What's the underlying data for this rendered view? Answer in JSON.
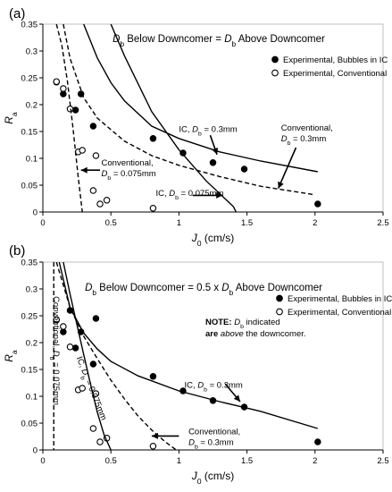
{
  "chart_data": [
    {
      "panel_label": "(a)",
      "type": "scatter",
      "title_parts": [
        "D",
        "b",
        " Below Downcomer = ",
        "D",
        "b",
        " Above Downcomer"
      ],
      "xlabel_parts": [
        "J",
        "0",
        " (cm/s)"
      ],
      "ylabel_parts": [
        "R",
        "a"
      ],
      "xlim": [
        0,
        2.5
      ],
      "ylim": [
        0,
        0.35
      ],
      "xticks": [
        0,
        0.5,
        1,
        1.5,
        2,
        2.5
      ],
      "xtick_labels": [
        "0",
        "0.5",
        "1",
        "1.5",
        "2",
        "2.5"
      ],
      "yticks": [
        0,
        0.05,
        0.1,
        0.15,
        0.2,
        0.25,
        0.3,
        0.35
      ],
      "ytick_labels": [
        "0",
        "0.05",
        "0.1",
        "0.15",
        "0.2",
        "0.25",
        "0.3",
        "0.35"
      ],
      "grid": false,
      "legend_position": "top-right",
      "legend": [
        {
          "marker": "filled",
          "label": "Experimental, Bubbles in IC"
        },
        {
          "marker": "open",
          "label": "Experimental, Conventional"
        }
      ],
      "series": [
        {
          "name": "Experimental, Bubbles in IC",
          "marker": "filled",
          "x": [
            0.1,
            0.15,
            0.24,
            0.28,
            0.37,
            0.81,
            1.03,
            1.25,
            1.48,
            2.02
          ],
          "y": [
            0.242,
            0.22,
            0.19,
            0.22,
            0.16,
            0.137,
            0.11,
            0.092,
            0.08,
            0.015
          ]
        },
        {
          "name": "Experimental, Conventional",
          "marker": "open",
          "x": [
            0.1,
            0.15,
            0.2,
            0.26,
            0.29,
            0.37,
            0.39,
            0.42,
            0.47,
            0.81
          ],
          "y": [
            0.243,
            0.23,
            0.192,
            0.112,
            0.115,
            0.04,
            0.105,
            0.015,
            0.022,
            0.007
          ]
        },
        {
          "name": "IC, Db = 0.3mm",
          "style": "solid",
          "x": [
            0.3,
            0.4,
            0.5,
            0.6,
            0.8,
            1.0,
            1.3,
            1.6,
            2.02
          ],
          "y": [
            0.35,
            0.287,
            0.241,
            0.207,
            0.16,
            0.137,
            0.112,
            0.095,
            0.075
          ]
        },
        {
          "name": "IC, Db = 0.075mm",
          "style": "solid",
          "x": [
            0.5,
            0.6,
            0.8,
            1.0,
            1.2,
            1.4,
            1.42
          ],
          "y": [
            0.35,
            0.291,
            0.187,
            0.116,
            0.058,
            0.01,
            0
          ]
        },
        {
          "name": "Conventional, Db = 0.3mm",
          "style": "dashed",
          "x": [
            0.15,
            0.2,
            0.3,
            0.4,
            0.6,
            0.8,
            1.0,
            1.3,
            1.6,
            2.0
          ],
          "y": [
            0.35,
            0.286,
            0.213,
            0.175,
            0.132,
            0.105,
            0.087,
            0.066,
            0.048,
            0.032
          ]
        },
        {
          "name": "Conventional, Db = 0.075mm",
          "style": "dashed",
          "x": [
            0.1,
            0.14,
            0.18,
            0.22,
            0.26,
            0.29
          ],
          "y": [
            0.35,
            0.31,
            0.245,
            0.16,
            0.065,
            0
          ]
        }
      ],
      "annotations": [
        {
          "lines": [
            [
              "IC, ",
              "D",
              "b",
              " = 0.3mm"
            ]
          ],
          "x": 1.0,
          "y": 0.149,
          "arrow_from": [
            1.23,
            0.143
          ],
          "arrow_to": [
            1.28,
            0.107
          ]
        },
        {
          "lines": [
            [
              "Conventional,"
            ],
            [
              "D",
              "b",
              " = 0.3mm"
            ]
          ],
          "x": 1.75,
          "y": 0.152,
          "arrow_from": [
            1.86,
            0.12
          ],
          "arrow_to": [
            1.73,
            0.044
          ]
        },
        {
          "lines": [
            [
              "Conventional,"
            ],
            [
              "D",
              "b",
              " = 0.075mm"
            ]
          ],
          "x": 0.43,
          "y": 0.087,
          "arrow_from": [
            0.42,
            0.078
          ],
          "arrow_to": [
            0.28,
            0.078
          ]
        },
        {
          "lines": [
            [
              "IC, ",
              "D",
              "b",
              " = 0.075mm"
            ]
          ],
          "x": 0.83,
          "y": 0.03,
          "arrow_from": [
            1.1,
            0.031
          ],
          "arrow_to": [
            1.32,
            0.031
          ]
        }
      ]
    },
    {
      "panel_label": "(b)",
      "type": "scatter",
      "title_parts": [
        "D",
        "b",
        " Below Downcomer = 0.5 x ",
        "D",
        "b",
        " Above Downcomer"
      ],
      "xlabel_parts": [
        "J",
        "0",
        " (cm/s)"
      ],
      "ylabel_parts": [
        "R",
        "a"
      ],
      "xlim": [
        0,
        2.5
      ],
      "ylim": [
        0,
        0.35
      ],
      "xticks": [
        0,
        0.5,
        1,
        1.5,
        2,
        2.5
      ],
      "xtick_labels": [
        "0",
        "0.5",
        "1",
        "1.5",
        "2",
        "2.5"
      ],
      "yticks": [
        0,
        0.05,
        0.1,
        0.15,
        0.2,
        0.25,
        0.3,
        0.35
      ],
      "ytick_labels": [
        "0",
        "0.05",
        "0.1",
        "0.15",
        "0.2",
        "0.25",
        "0.3",
        "0.35"
      ],
      "grid": false,
      "legend_position": "top-right",
      "legend": [
        {
          "marker": "filled",
          "label": "Experimental, Bubbles in IC"
        },
        {
          "marker": "open",
          "label": "Experimental, Conventional"
        }
      ],
      "note_parts": [
        [
          "NOTE: ",
          "D",
          "b",
          " indicated"
        ],
        [
          "are ",
          "above",
          " the downcomer."
        ]
      ],
      "series": [
        {
          "name": "Experimental, Bubbles in IC",
          "marker": "filled",
          "x": [
            0.1,
            0.15,
            0.2,
            0.24,
            0.28,
            0.37,
            0.39,
            0.81,
            1.03,
            1.25,
            1.48,
            2.02
          ],
          "y": [
            0.242,
            0.22,
            0.26,
            0.19,
            0.22,
            0.16,
            0.245,
            0.137,
            0.11,
            0.092,
            0.08,
            0.015
          ]
        },
        {
          "name": "Experimental, Conventional",
          "marker": "open",
          "x": [
            0.1,
            0.15,
            0.2,
            0.26,
            0.29,
            0.37,
            0.39,
            0.42,
            0.47,
            0.81
          ],
          "y": [
            0.243,
            0.23,
            0.192,
            0.112,
            0.115,
            0.04,
            0.105,
            0.015,
            0.022,
            0.007
          ]
        },
        {
          "name": "IC, Db = 0.3mm",
          "style": "solid",
          "x": [
            0.12,
            0.2,
            0.3,
            0.4,
            0.5,
            0.7,
            1.0,
            1.3,
            1.6,
            2.02
          ],
          "y": [
            0.35,
            0.265,
            0.218,
            0.188,
            0.165,
            0.138,
            0.11,
            0.09,
            0.072,
            0.04
          ]
        },
        {
          "name": "IC, Db = 0.075mm",
          "style": "solid",
          "x": [
            0.15,
            0.2,
            0.25,
            0.3,
            0.35,
            0.4,
            0.45,
            0.5
          ],
          "y": [
            0.35,
            0.29,
            0.234,
            0.178,
            0.123,
            0.07,
            0.028,
            0
          ]
        },
        {
          "name": "Conventional, Db = 0.3mm",
          "style": "dashed",
          "x": [
            0.1,
            0.2,
            0.3,
            0.4,
            0.5,
            0.6,
            0.7,
            0.8,
            0.9,
            0.98
          ],
          "y": [
            0.35,
            0.265,
            0.212,
            0.17,
            0.13,
            0.095,
            0.063,
            0.037,
            0.015,
            0
          ]
        },
        {
          "name": "Conventional, Db = 0.075mm",
          "style": "dashed",
          "x": [
            0.08,
            0.08
          ],
          "y": [
            0.35,
            0
          ]
        }
      ],
      "annotations": [
        {
          "lines": [
            [
              "IC, ",
              "D",
              "b",
              " = 0.3mm"
            ]
          ],
          "x": 1.04,
          "y": 0.116,
          "arrow_from": [
            1.34,
            0.123
          ],
          "arrow_to": [
            1.45,
            0.09
          ]
        },
        {
          "lines": [
            [
              "Conventional,"
            ],
            [
              "D",
              "b",
              " = 0.3mm"
            ]
          ],
          "x": 1.07,
          "y": 0.029,
          "arrow_from": [
            1.0,
            0.026
          ],
          "arrow_to": [
            0.8,
            0.026
          ]
        },
        {
          "lines": [
            [
              "Conventional, ",
              "D",
              "b",
              " = 0.075mm"
            ]
          ],
          "x": 0.08,
          "y": 0.185,
          "rotate": 90
        },
        {
          "lines": [
            [
              "IC, ",
              "D",
              "b",
              " = 0.075mm"
            ]
          ],
          "x": 0.34,
          "y": 0.113,
          "rotate": 68
        }
      ]
    }
  ]
}
